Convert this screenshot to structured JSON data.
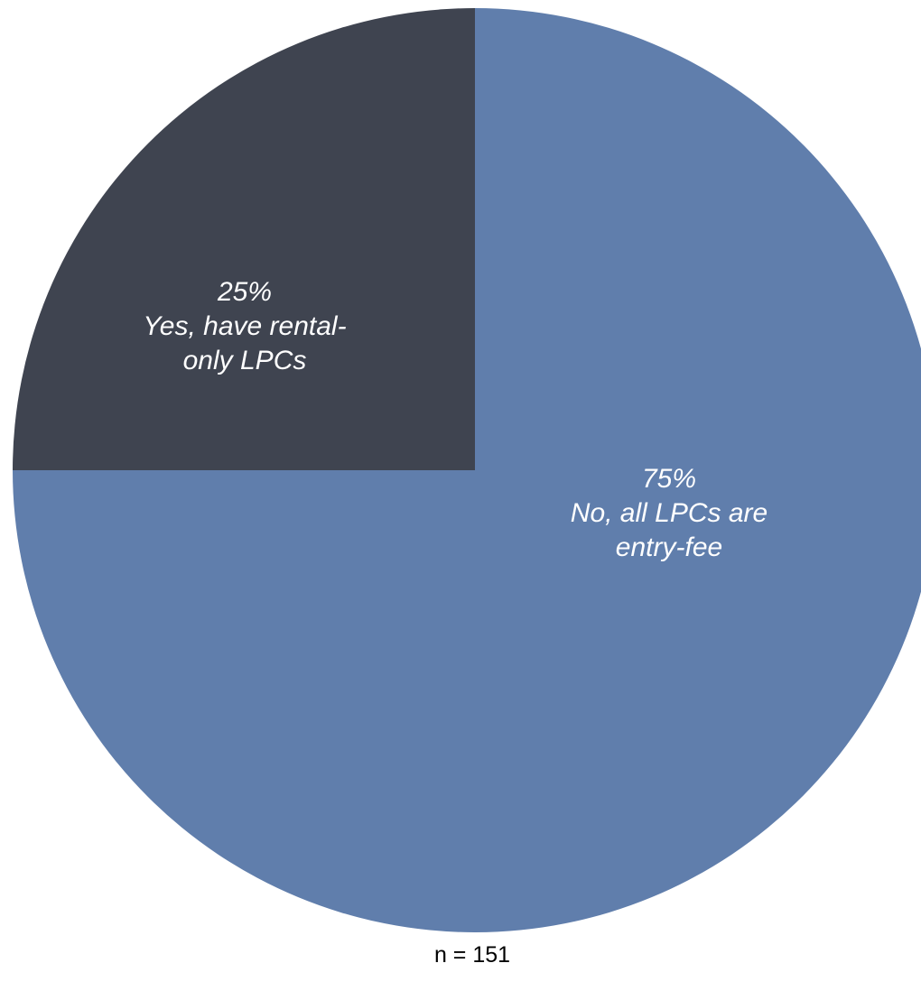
{
  "chart_data": {
    "type": "pie",
    "slices": [
      {
        "label": "No, all LPCs are entry-fee",
        "value": 75,
        "percent_text": "75%",
        "label_lines": [
          "No, all LPCs are",
          "entry-fee"
        ],
        "color": "#607eac"
      },
      {
        "label": "Yes, have rental-only LPCs",
        "value": 25,
        "percent_text": "25%",
        "label_lines": [
          "Yes, have rental-",
          "only LPCs"
        ],
        "color": "#3f4450"
      }
    ],
    "start_angle_deg": 0,
    "direction": "clockwise",
    "legend": "none",
    "note": "n = 151"
  }
}
